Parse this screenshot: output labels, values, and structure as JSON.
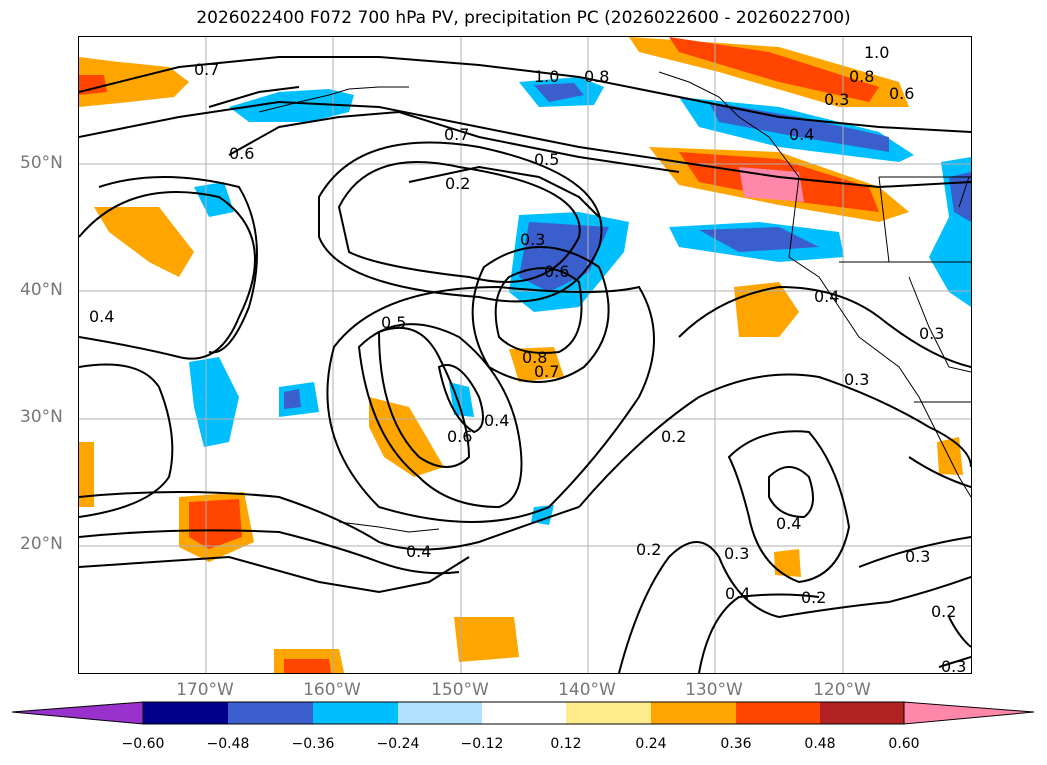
{
  "title": "2026022400 F072 700 hPa PV, precipitation PC (2026022600 - 2026022700)",
  "lat_labels": [
    "50°N",
    "40°N",
    "30°N",
    "20°N"
  ],
  "lon_labels": [
    "170°W",
    "160°W",
    "150°W",
    "140°W",
    "130°W",
    "120°W"
  ],
  "colorbar": {
    "ticks": [
      "−0.60",
      "−0.48",
      "−0.36",
      "−0.24",
      "−0.12",
      "0.12",
      "0.24",
      "0.36",
      "0.48",
      "0.60"
    ],
    "colors": [
      "#9932cc",
      "#00008b",
      "#3a5fcd",
      "#00bfff",
      "#b0e2ff",
      "#ffffff",
      "#ffec8b",
      "#ffa500",
      "#ff4500",
      "#b22222",
      "#ff88aa"
    ]
  },
  "contour_labels": {
    "c1": "0.7",
    "c2": "1.0",
    "c3": "0.8",
    "c4": "1.0",
    "c5": "0.8",
    "c6": "0.6",
    "c7": "0.3",
    "c8": "0.4",
    "c9": "0.7",
    "c10": "0.5",
    "c11": "0.6",
    "c12": "0.2",
    "c13": "0.3",
    "c14": "0.6",
    "c15": "0.5",
    "c16": "0.8",
    "c17": "0.7",
    "c18": "0.4",
    "c19": "0.6",
    "c20": "0.4",
    "c21": "0.4",
    "c22": "0.3",
    "c23": "0.3",
    "c24": "0.2",
    "c25": "0.2",
    "c26": "0.3",
    "c27": "0.4",
    "c28": "0.4",
    "c29": "0.2",
    "c30": "0.3",
    "c31": "0.2",
    "c32": "0.3",
    "c33": "0.4"
  }
}
